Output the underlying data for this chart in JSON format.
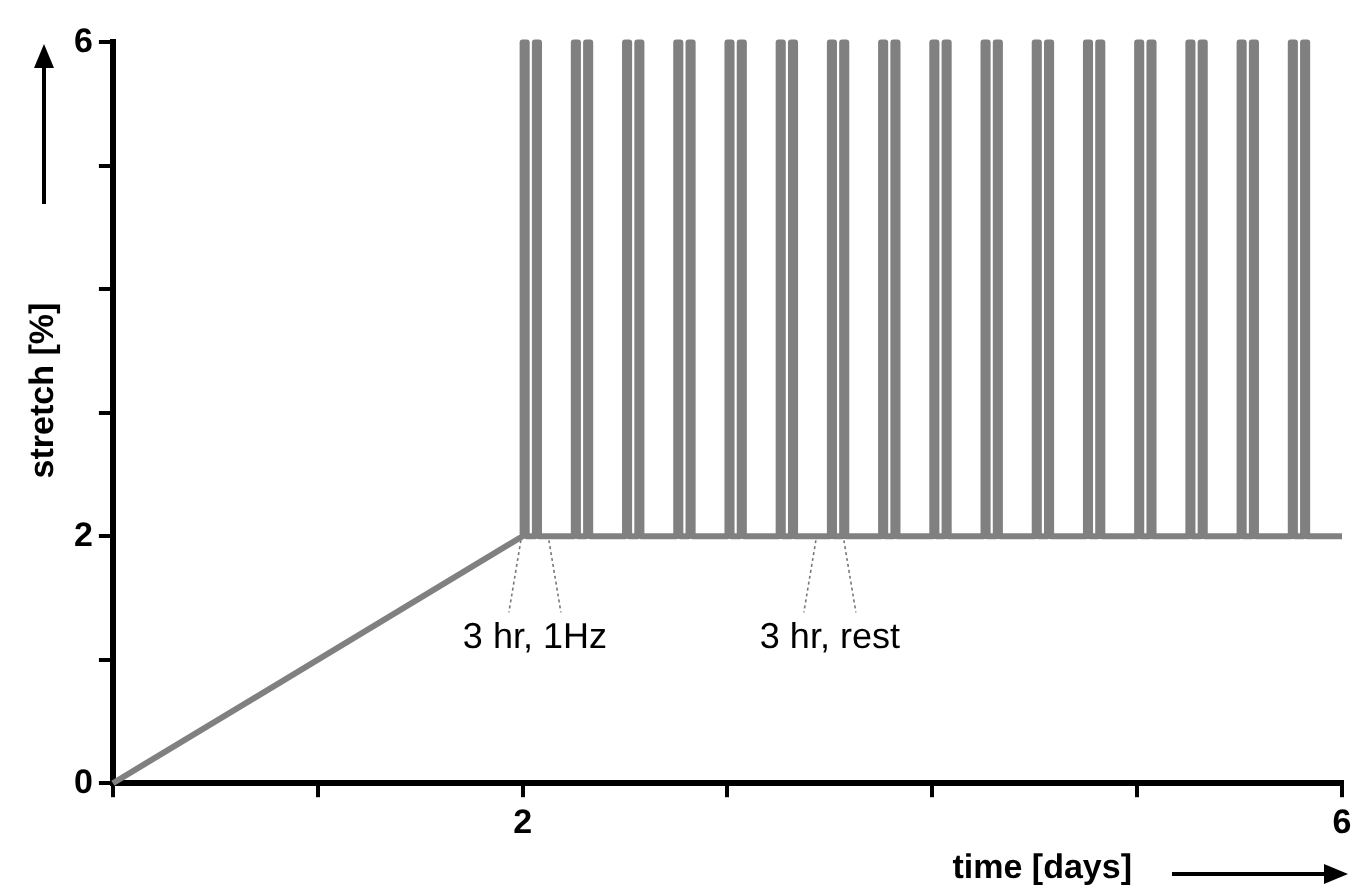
{
  "chart_data": {
    "type": "line",
    "xlabel": "time [days]",
    "ylabel": "stretch [%]",
    "xlim": [
      0,
      6
    ],
    "ylim": [
      0,
      6
    ],
    "xticks": [
      {
        "value": 0,
        "label": null
      },
      {
        "value": 1,
        "label": null
      },
      2,
      {
        "value": 3,
        "label": null
      },
      {
        "value": 4,
        "label": null
      },
      {
        "value": 5,
        "label": null
      },
      6
    ],
    "yticks": [
      0,
      {
        "value": 1,
        "label": null
      },
      2,
      {
        "value": 3,
        "label": null
      },
      {
        "value": 4,
        "label": null
      },
      {
        "value": 5,
        "label": null
      },
      6
    ],
    "grid": false,
    "legend": false,
    "marker": "none",
    "line_style": "solid",
    "annotations": [
      {
        "text": "3 hr, 1Hz",
        "x": 2.06,
        "y": 2
      },
      {
        "text": "3 hr, rest",
        "x": 3.5,
        "y": 2
      }
    ],
    "series": [
      {
        "color": "#808080",
        "x": [
          0,
          2,
          2,
          2.02,
          2.02,
          2.06,
          2.06,
          2.08,
          2.08,
          2.25,
          2.25,
          2.27,
          2.27,
          2.31,
          2.31,
          2.33,
          2.33,
          2.5,
          2.5,
          2.52,
          2.52,
          2.56,
          2.56,
          2.58,
          2.58,
          2.75,
          2.75,
          2.77,
          2.77,
          2.81,
          2.81,
          2.83,
          2.83,
          3,
          3,
          3.02,
          3.02,
          3.06,
          3.06,
          3.08,
          3.08,
          3.25,
          3.25,
          3.27,
          3.27,
          3.31,
          3.31,
          3.33,
          3.33,
          3.5,
          3.5,
          3.52,
          3.52,
          3.56,
          3.56,
          3.58,
          3.58,
          3.75,
          3.75,
          3.77,
          3.77,
          3.81,
          3.81,
          3.83,
          3.83,
          4,
          4,
          4.02,
          4.02,
          4.06,
          4.06,
          4.08,
          4.08,
          4.25,
          4.25,
          4.27,
          4.27,
          4.31,
          4.31,
          4.33,
          4.33,
          4.5,
          4.5,
          4.52,
          4.52,
          4.56,
          4.56,
          4.58,
          4.58,
          4.75,
          4.75,
          4.77,
          4.77,
          4.81,
          4.81,
          4.83,
          4.83,
          5,
          5,
          5.02,
          5.02,
          5.06,
          5.06,
          5.08,
          5.08,
          5.25,
          5.25,
          5.27,
          5.27,
          5.31,
          5.31,
          5.33,
          5.33,
          5.5,
          5.5,
          5.52,
          5.52,
          5.56,
          5.56,
          5.58,
          5.58,
          5.75,
          5.75,
          5.77,
          5.77,
          5.81,
          5.81,
          5.83,
          5.83,
          6
        ],
        "values": [
          0,
          2,
          6,
          6,
          2,
          2,
          6,
          6,
          2,
          2,
          6,
          6,
          2,
          2,
          6,
          6,
          2,
          2,
          6,
          6,
          2,
          2,
          6,
          6,
          2,
          2,
          6,
          6,
          2,
          2,
          6,
          6,
          2,
          2,
          6,
          6,
          2,
          2,
          6,
          6,
          2,
          2,
          6,
          6,
          2,
          2,
          6,
          6,
          2,
          2,
          6,
          6,
          2,
          2,
          6,
          6,
          2,
          2,
          6,
          6,
          2,
          2,
          6,
          6,
          2,
          2,
          6,
          6,
          2,
          2,
          6,
          6,
          2,
          2,
          6,
          6,
          2,
          2,
          6,
          6,
          2,
          2,
          6,
          6,
          2,
          2,
          6,
          6,
          2,
          2,
          6,
          6,
          2,
          2,
          6,
          6,
          2,
          2,
          6,
          6,
          2,
          2,
          6,
          6,
          2,
          2,
          6,
          6,
          2,
          2,
          6,
          6,
          2,
          2,
          6,
          6,
          2,
          2,
          6,
          6,
          2,
          2,
          6,
          6,
          2,
          2,
          6,
          6,
          2,
          2
        ]
      }
    ]
  }
}
